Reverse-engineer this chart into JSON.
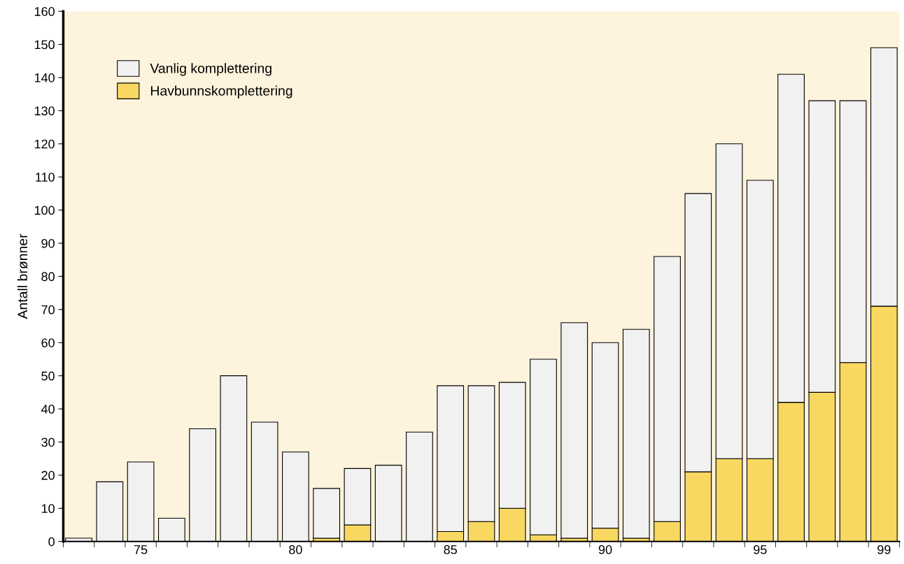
{
  "chart_data": {
    "type": "bar",
    "stacked": true,
    "ylabel": "Antall brønner",
    "categories": [
      null,
      null,
      "75",
      null,
      null,
      null,
      null,
      "80",
      null,
      null,
      null,
      null,
      "85",
      null,
      null,
      null,
      null,
      "90",
      null,
      null,
      null,
      null,
      "95",
      null,
      null,
      null,
      "99"
    ],
    "series": [
      {
        "name": "Havbunnskomplettering",
        "color": "#f8d860",
        "values": [
          0,
          0,
          0,
          0,
          0,
          0,
          0,
          0,
          1,
          5,
          0,
          0,
          3,
          6,
          10,
          2,
          1,
          4,
          1,
          6,
          21,
          25,
          25,
          42,
          45,
          54,
          71
        ]
      },
      {
        "name": "Vanlig komplettering",
        "color": "#f1f1f1",
        "values": [
          1,
          18,
          24,
          7,
          34,
          50,
          36,
          27,
          15,
          17,
          23,
          33,
          44,
          41,
          38,
          53,
          65,
          56,
          63,
          80,
          84,
          95,
          84,
          99,
          88,
          79,
          78
        ]
      }
    ],
    "ylim": [
      0,
      160
    ],
    "yticks": [
      0,
      10,
      20,
      30,
      40,
      50,
      60,
      70,
      80,
      90,
      100,
      110,
      120,
      130,
      140,
      150,
      160
    ],
    "grid": false,
    "legend": "top left"
  }
}
